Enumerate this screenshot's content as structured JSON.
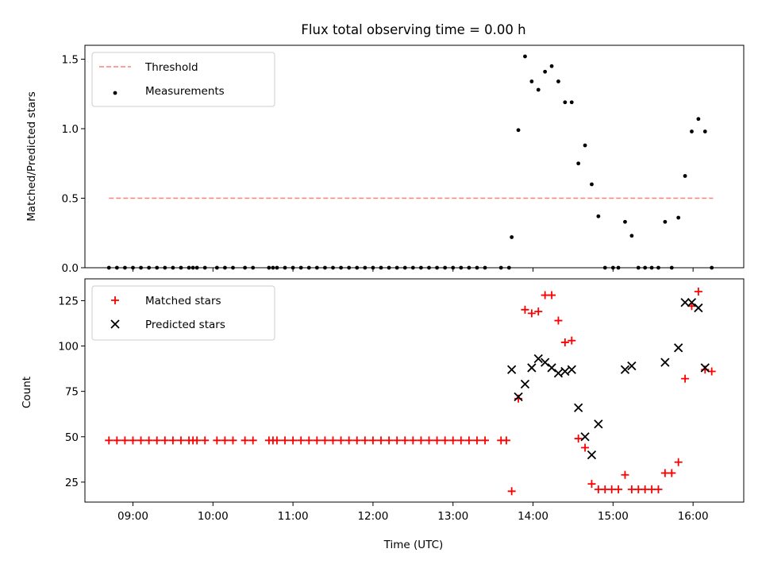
{
  "chart_data": [
    {
      "type": "scatter",
      "title": "Flux total observing time = 0.00 h",
      "xlabel": "",
      "ylabel": "Matched/Predicted stars",
      "xlim": [
        "08:24",
        "16:38"
      ],
      "ylim": [
        0,
        1.6
      ],
      "yticks": [
        0,
        0.5,
        1.0,
        1.5
      ],
      "ytick_labels": [
        "0.0",
        "0.5",
        "1.0",
        "1.5"
      ],
      "grid": false,
      "legend_position": "upper left",
      "threshold": {
        "name": "Threshold",
        "value": 0.5,
        "x_start": "08:42",
        "x_end": "16:15",
        "color": "#ff7f7f",
        "style": "dashed"
      },
      "series": [
        {
          "name": "Measurements",
          "color": "#000000",
          "marker": "dot",
          "points": [
            [
              "08:42",
              0
            ],
            [
              "08:48",
              0
            ],
            [
              "08:54",
              0
            ],
            [
              "09:00",
              0
            ],
            [
              "09:06",
              0
            ],
            [
              "09:12",
              0
            ],
            [
              "09:18",
              0
            ],
            [
              "09:24",
              0
            ],
            [
              "09:30",
              0
            ],
            [
              "09:36",
              0
            ],
            [
              "09:42",
              0
            ],
            [
              "09:45",
              0
            ],
            [
              "09:48",
              0
            ],
            [
              "09:54",
              0
            ],
            [
              "10:03",
              0
            ],
            [
              "10:09",
              0
            ],
            [
              "10:15",
              0
            ],
            [
              "10:24",
              0
            ],
            [
              "10:30",
              0
            ],
            [
              "10:42",
              0
            ],
            [
              "10:45",
              0
            ],
            [
              "10:48",
              0
            ],
            [
              "10:54",
              0
            ],
            [
              "11:00",
              0
            ],
            [
              "11:06",
              0
            ],
            [
              "11:12",
              0
            ],
            [
              "11:18",
              0
            ],
            [
              "11:24",
              0
            ],
            [
              "11:30",
              0
            ],
            [
              "11:36",
              0
            ],
            [
              "11:42",
              0
            ],
            [
              "11:48",
              0
            ],
            [
              "11:54",
              0
            ],
            [
              "12:00",
              0
            ],
            [
              "12:06",
              0
            ],
            [
              "12:12",
              0
            ],
            [
              "12:18",
              0
            ],
            [
              "12:24",
              0
            ],
            [
              "12:30",
              0
            ],
            [
              "12:36",
              0
            ],
            [
              "12:42",
              0
            ],
            [
              "12:48",
              0
            ],
            [
              "12:54",
              0
            ],
            [
              "13:00",
              0
            ],
            [
              "13:06",
              0
            ],
            [
              "13:12",
              0
            ],
            [
              "13:18",
              0
            ],
            [
              "13:24",
              0
            ],
            [
              "13:36",
              0
            ],
            [
              "13:42",
              0
            ],
            [
              "13:44",
              0.22
            ],
            [
              "13:49",
              0.99
            ],
            [
              "13:54",
              1.52
            ],
            [
              "13:59",
              1.34
            ],
            [
              "14:04",
              1.28
            ],
            [
              "14:09",
              1.41
            ],
            [
              "14:14",
              1.45
            ],
            [
              "14:19",
              1.34
            ],
            [
              "14:24",
              1.19
            ],
            [
              "14:29",
              1.19
            ],
            [
              "14:34",
              0.75
            ],
            [
              "14:39",
              0.88
            ],
            [
              "14:44",
              0.6
            ],
            [
              "14:49",
              0.37
            ],
            [
              "14:54",
              0
            ],
            [
              "15:00",
              0
            ],
            [
              "15:04",
              0
            ],
            [
              "15:09",
              0.33
            ],
            [
              "15:14",
              0.23
            ],
            [
              "15:19",
              0
            ],
            [
              "15:24",
              0
            ],
            [
              "15:29",
              0
            ],
            [
              "15:34",
              0
            ],
            [
              "15:39",
              0.33
            ],
            [
              "15:44",
              0
            ],
            [
              "15:49",
              0.36
            ],
            [
              "15:54",
              0.66
            ],
            [
              "15:59",
              0.98
            ],
            [
              "16:04",
              1.07
            ],
            [
              "16:09",
              0.98
            ],
            [
              "16:14",
              0
            ]
          ]
        }
      ]
    },
    {
      "type": "scatter",
      "title": "",
      "xlabel": "Time (UTC)",
      "ylabel": "Count",
      "xlim": [
        "08:24",
        "16:38"
      ],
      "ylim": [
        14,
        137
      ],
      "yticks": [
        25,
        50,
        75,
        100,
        125
      ],
      "ytick_labels": [
        "25",
        "50",
        "75",
        "100",
        "125"
      ],
      "xticks": [
        "09:00",
        "10:00",
        "11:00",
        "12:00",
        "13:00",
        "14:00",
        "15:00",
        "16:00"
      ],
      "xtick_labels": [
        "09:00",
        "10:00",
        "11:00",
        "12:00",
        "13:00",
        "14:00",
        "15:00",
        "16:00"
      ],
      "grid": false,
      "legend_position": "upper left",
      "series": [
        {
          "name": "Matched stars",
          "color": "#ff0000",
          "marker": "plus",
          "points": [
            [
              "08:42",
              48
            ],
            [
              "08:48",
              48
            ],
            [
              "08:54",
              48
            ],
            [
              "09:00",
              48
            ],
            [
              "09:06",
              48
            ],
            [
              "09:12",
              48
            ],
            [
              "09:18",
              48
            ],
            [
              "09:24",
              48
            ],
            [
              "09:30",
              48
            ],
            [
              "09:36",
              48
            ],
            [
              "09:42",
              48
            ],
            [
              "09:45",
              48
            ],
            [
              "09:48",
              48
            ],
            [
              "09:54",
              48
            ],
            [
              "10:03",
              48
            ],
            [
              "10:09",
              48
            ],
            [
              "10:15",
              48
            ],
            [
              "10:24",
              48
            ],
            [
              "10:30",
              48
            ],
            [
              "10:42",
              48
            ],
            [
              "10:45",
              48
            ],
            [
              "10:48",
              48
            ],
            [
              "10:54",
              48
            ],
            [
              "11:00",
              48
            ],
            [
              "11:06",
              48
            ],
            [
              "11:12",
              48
            ],
            [
              "11:18",
              48
            ],
            [
              "11:24",
              48
            ],
            [
              "11:30",
              48
            ],
            [
              "11:36",
              48
            ],
            [
              "11:42",
              48
            ],
            [
              "11:48",
              48
            ],
            [
              "11:54",
              48
            ],
            [
              "12:00",
              48
            ],
            [
              "12:06",
              48
            ],
            [
              "12:12",
              48
            ],
            [
              "12:18",
              48
            ],
            [
              "12:24",
              48
            ],
            [
              "12:30",
              48
            ],
            [
              "12:36",
              48
            ],
            [
              "12:42",
              48
            ],
            [
              "12:48",
              48
            ],
            [
              "12:54",
              48
            ],
            [
              "13:00",
              48
            ],
            [
              "13:06",
              48
            ],
            [
              "13:12",
              48
            ],
            [
              "13:18",
              48
            ],
            [
              "13:24",
              48
            ],
            [
              "13:36",
              48
            ],
            [
              "13:40",
              48
            ],
            [
              "13:44",
              20
            ],
            [
              "13:49",
              71
            ],
            [
              "13:54",
              120
            ],
            [
              "13:59",
              118
            ],
            [
              "14:04",
              119
            ],
            [
              "14:09",
              128
            ],
            [
              "14:14",
              128
            ],
            [
              "14:19",
              114
            ],
            [
              "14:24",
              102
            ],
            [
              "14:29",
              103
            ],
            [
              "14:34",
              49
            ],
            [
              "14:39",
              44
            ],
            [
              "14:44",
              24
            ],
            [
              "14:49",
              21
            ],
            [
              "14:54",
              21
            ],
            [
              "14:59",
              21
            ],
            [
              "15:04",
              21
            ],
            [
              "15:09",
              29
            ],
            [
              "15:14",
              21
            ],
            [
              "15:19",
              21
            ],
            [
              "15:24",
              21
            ],
            [
              "15:29",
              21
            ],
            [
              "15:34",
              21
            ],
            [
              "15:39",
              30
            ],
            [
              "15:44",
              30
            ],
            [
              "15:49",
              36
            ],
            [
              "15:54",
              82
            ],
            [
              "15:59",
              122
            ],
            [
              "16:04",
              130
            ],
            [
              "16:09",
              87
            ],
            [
              "16:14",
              86
            ]
          ]
        },
        {
          "name": "Predicted stars",
          "color": "#000000",
          "marker": "x",
          "points": [
            [
              "13:44",
              87
            ],
            [
              "13:49",
              72
            ],
            [
              "13:54",
              79
            ],
            [
              "13:59",
              88
            ],
            [
              "14:04",
              93
            ],
            [
              "14:09",
              91
            ],
            [
              "14:14",
              88
            ],
            [
              "14:19",
              85
            ],
            [
              "14:24",
              86
            ],
            [
              "14:29",
              87
            ],
            [
              "14:34",
              66
            ],
            [
              "14:39",
              50
            ],
            [
              "14:44",
              40
            ],
            [
              "14:49",
              57
            ],
            [
              "15:09",
              87
            ],
            [
              "15:14",
              89
            ],
            [
              "15:39",
              91
            ],
            [
              "15:49",
              99
            ],
            [
              "15:54",
              124
            ],
            [
              "15:59",
              124
            ],
            [
              "16:04",
              121
            ],
            [
              "16:09",
              88
            ]
          ]
        }
      ]
    }
  ]
}
